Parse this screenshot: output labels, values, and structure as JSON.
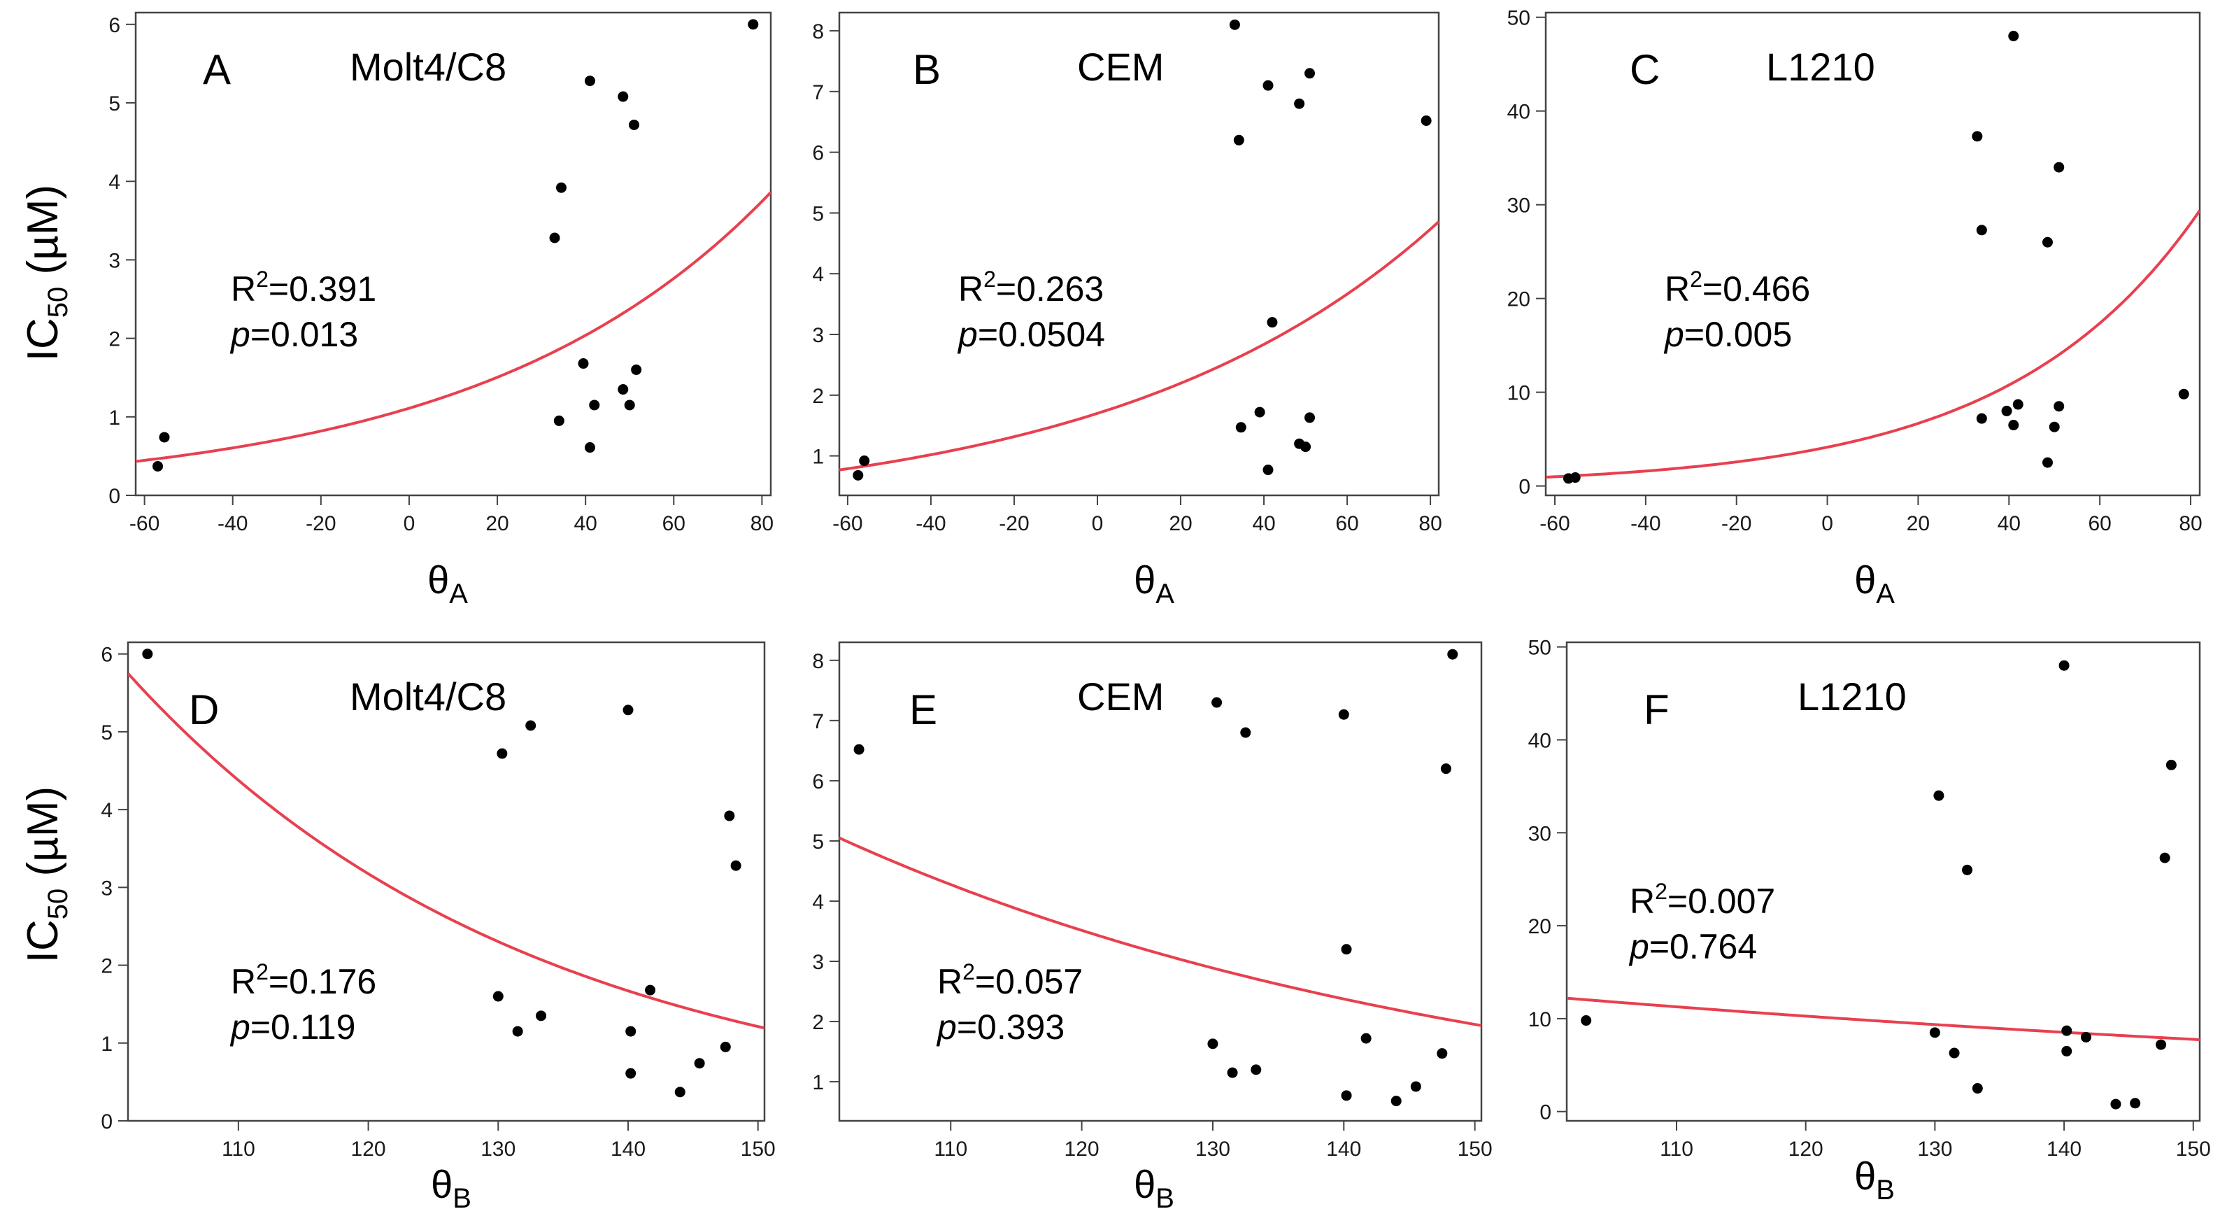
{
  "figure": {
    "y_axis_label": {
      "main": "IC",
      "sub": "50",
      "unit": " (µM)"
    },
    "x_axis_label_top": {
      "main": "θ",
      "sub": "A"
    },
    "x_axis_label_bottom": {
      "main": "θ",
      "sub": "B"
    },
    "fit_color": "#e8404f",
    "point_color": "#000000"
  },
  "chart_data": [
    {
      "id": "A",
      "type": "scatter",
      "panel_letter": "A",
      "cell_line": "Molt4/C8",
      "r2_label": "R",
      "r2_sup": "2",
      "r2_value": "=0.391",
      "p_label": "p",
      "p_value": "=0.013",
      "xlim": [
        -62,
        82
      ],
      "ylim": [
        0,
        6.15
      ],
      "xticks": [
        -60,
        -40,
        -20,
        0,
        20,
        40,
        60,
        80
      ],
      "yticks": [
        0,
        1,
        2,
        3,
        4,
        5,
        6
      ],
      "xlabel": "θA",
      "ylabel": "IC50 (µM)",
      "points": [
        [
          -57,
          0.37
        ],
        [
          -55.5,
          0.74
        ],
        [
          33,
          3.28
        ],
        [
          34,
          0.95
        ],
        [
          34.5,
          3.92
        ],
        [
          39.5,
          1.68
        ],
        [
          41,
          0.61
        ],
        [
          41,
          5.28
        ],
        [
          42,
          1.15
        ],
        [
          48.5,
          1.35
        ],
        [
          48.5,
          5.08
        ],
        [
          50,
          1.15
        ],
        [
          51,
          4.72
        ],
        [
          51.5,
          1.6
        ],
        [
          78,
          6.0
        ]
      ],
      "fit": {
        "model": "exp",
        "a": 1.11,
        "b": 0.0152
      }
    },
    {
      "id": "B",
      "type": "scatter",
      "panel_letter": "B",
      "cell_line": "CEM",
      "r2_label": "R",
      "r2_sup": "2",
      "r2_value": "=0.263",
      "p_label": "p",
      "p_value": "=0.0504",
      "xlim": [
        -62,
        82
      ],
      "ylim": [
        0.35,
        8.3
      ],
      "xticks": [
        -60,
        -40,
        -20,
        0,
        20,
        40,
        60,
        80
      ],
      "yticks": [
        1,
        2,
        3,
        4,
        5,
        6,
        7,
        8
      ],
      "xlabel": "θA",
      "ylabel": "IC50 (µM)",
      "points": [
        [
          -57.5,
          0.68
        ],
        [
          -56,
          0.92
        ],
        [
          33,
          8.1
        ],
        [
          34,
          6.2
        ],
        [
          34.5,
          1.47
        ],
        [
          39,
          1.72
        ],
        [
          41,
          7.1
        ],
        [
          41,
          0.77
        ],
        [
          42,
          3.2
        ],
        [
          48.5,
          6.8
        ],
        [
          48.5,
          1.2
        ],
        [
          50,
          1.15
        ],
        [
          51,
          7.3
        ],
        [
          51,
          1.63
        ],
        [
          79,
          6.52
        ]
      ],
      "fit": {
        "model": "exp",
        "a": 1.7,
        "b": 0.0128
      }
    },
    {
      "id": "C",
      "type": "scatter",
      "panel_letter": "C",
      "cell_line": "L1210",
      "r2_label": "R",
      "r2_sup": "2",
      "r2_value": "=0.466",
      "p_label": "p",
      "p_value": "=0.005",
      "xlim": [
        -62,
        82
      ],
      "ylim": [
        -1,
        50.5
      ],
      "xticks": [
        -60,
        -40,
        -20,
        0,
        20,
        40,
        60,
        80
      ],
      "yticks": [
        0,
        10,
        20,
        30,
        40,
        50
      ],
      "xlabel": "θA",
      "ylabel": "IC50 (µM)",
      "points": [
        [
          -57,
          0.8
        ],
        [
          -55.5,
          0.9
        ],
        [
          33,
          37.3
        ],
        [
          34,
          27.3
        ],
        [
          34,
          7.2
        ],
        [
          39.5,
          8
        ],
        [
          41,
          48
        ],
        [
          41,
          6.5
        ],
        [
          42,
          8.7
        ],
        [
          48.5,
          26
        ],
        [
          48.5,
          2.5
        ],
        [
          50,
          6.3
        ],
        [
          51,
          34
        ],
        [
          51,
          8.5
        ],
        [
          78.5,
          9.8
        ]
      ],
      "fit": {
        "model": "exp",
        "a": 4.14,
        "b": 0.0239
      }
    },
    {
      "id": "D",
      "type": "scatter",
      "panel_letter": "D",
      "cell_line": "Molt4/C8",
      "r2_label": "R",
      "r2_sup": "2",
      "r2_value": "=0.176",
      "p_label": "p",
      "p_value": "=0.119",
      "xlim": [
        101.5,
        150.5
      ],
      "ylim": [
        0,
        6.15
      ],
      "xticks": [
        110,
        120,
        130,
        140,
        150
      ],
      "yticks": [
        0,
        1,
        2,
        3,
        4,
        5,
        6
      ],
      "xlabel": "θB",
      "ylabel": "IC50 (µM)",
      "points": [
        [
          103,
          6.0
        ],
        [
          130,
          1.6
        ],
        [
          130.3,
          4.72
        ],
        [
          131.5,
          1.15
        ],
        [
          132.5,
          5.08
        ],
        [
          133.3,
          1.35
        ],
        [
          140,
          5.28
        ],
        [
          140.2,
          0.61
        ],
        [
          140.2,
          1.15
        ],
        [
          141.7,
          1.68
        ],
        [
          144,
          0.37
        ],
        [
          145.5,
          0.74
        ],
        [
          147.5,
          0.95
        ],
        [
          147.8,
          3.92
        ],
        [
          148.3,
          3.28
        ]
      ],
      "fit": {
        "model": "exp",
        "a": 5.75,
        "b": -0.0321,
        "x0": 101.5
      }
    },
    {
      "id": "E",
      "type": "scatter",
      "panel_letter": "E",
      "cell_line": "CEM",
      "r2_label": "R",
      "r2_sup": "2",
      "r2_value": "=0.057",
      "p_label": "p",
      "p_value": "=0.393",
      "xlim": [
        101.5,
        150.5
      ],
      "ylim": [
        0.35,
        8.3
      ],
      "xticks": [
        110,
        120,
        130,
        140,
        150
      ],
      "yticks": [
        1,
        2,
        3,
        4,
        5,
        6,
        7,
        8
      ],
      "xlabel": "θB",
      "ylabel": "IC50 (µM)",
      "points": [
        [
          103,
          6.52
        ],
        [
          130,
          1.63
        ],
        [
          130.3,
          7.3
        ],
        [
          131.5,
          1.15
        ],
        [
          132.5,
          6.8
        ],
        [
          133.3,
          1.2
        ],
        [
          140,
          7.1
        ],
        [
          140.2,
          0.77
        ],
        [
          140.2,
          3.2
        ],
        [
          141.7,
          1.72
        ],
        [
          144,
          0.68
        ],
        [
          145.5,
          0.92
        ],
        [
          147.5,
          1.47
        ],
        [
          147.8,
          6.2
        ],
        [
          148.3,
          8.1
        ]
      ],
      "fit": {
        "model": "exp",
        "a": 5.05,
        "b": -0.0196,
        "x0": 101.5
      }
    },
    {
      "id": "F",
      "type": "scatter",
      "panel_letter": "F",
      "cell_line": "L1210",
      "r2_label": "R",
      "r2_sup": "2",
      "r2_value": "=0.007",
      "p_label": "p",
      "p_value": "=0.764",
      "xlim": [
        101.5,
        150.5
      ],
      "ylim": [
        -1,
        50.5
      ],
      "xticks": [
        110,
        120,
        130,
        140,
        150
      ],
      "yticks": [
        0,
        10,
        20,
        30,
        40,
        50
      ],
      "xlabel": "θB",
      "ylabel": "IC50 (µM)",
      "points": [
        [
          103,
          9.8
        ],
        [
          130,
          8.5
        ],
        [
          130.3,
          34
        ],
        [
          131.5,
          6.3
        ],
        [
          132.5,
          26
        ],
        [
          133.3,
          2.5
        ],
        [
          140,
          48
        ],
        [
          140.2,
          6.5
        ],
        [
          140.2,
          8.7
        ],
        [
          141.7,
          8
        ],
        [
          144,
          0.8
        ],
        [
          145.5,
          0.9
        ],
        [
          147.5,
          7.2
        ],
        [
          147.8,
          27.3
        ],
        [
          148.3,
          37.3
        ]
      ],
      "fit": {
        "model": "exp",
        "a": 12.2,
        "b": -0.0093,
        "x0": 101.5
      }
    }
  ]
}
